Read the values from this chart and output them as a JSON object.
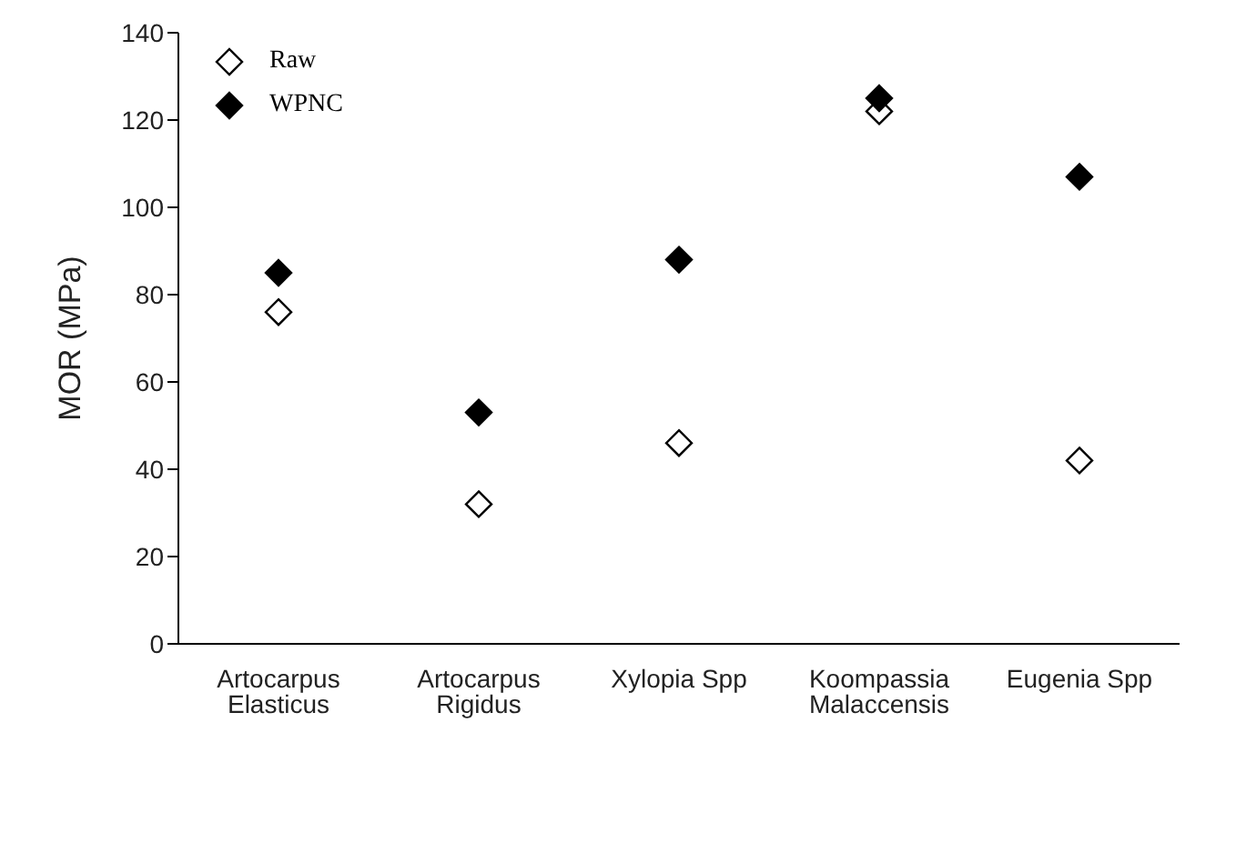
{
  "chart_data": {
    "type": "scatter",
    "ylabel": "MOR (MPa)",
    "categories": [
      "Artocarpus Elasticus",
      "Artocarpus Rigidus",
      "Xylopia Spp",
      "Koompassia Malaccensis",
      "Eugenia Spp"
    ],
    "series": [
      {
        "name": "Raw",
        "color": "#ffffff",
        "values": [
          76,
          32,
          46,
          122,
          42
        ]
      },
      {
        "name": "WPNC",
        "color": "#000000",
        "values": [
          85,
          53,
          88,
          125,
          107
        ]
      }
    ],
    "ylim": [
      0,
      140
    ],
    "yticks": [
      0,
      20,
      40,
      60,
      80,
      100,
      120,
      140
    ],
    "grid": false,
    "legend": "top left",
    "marker": "diamond"
  }
}
